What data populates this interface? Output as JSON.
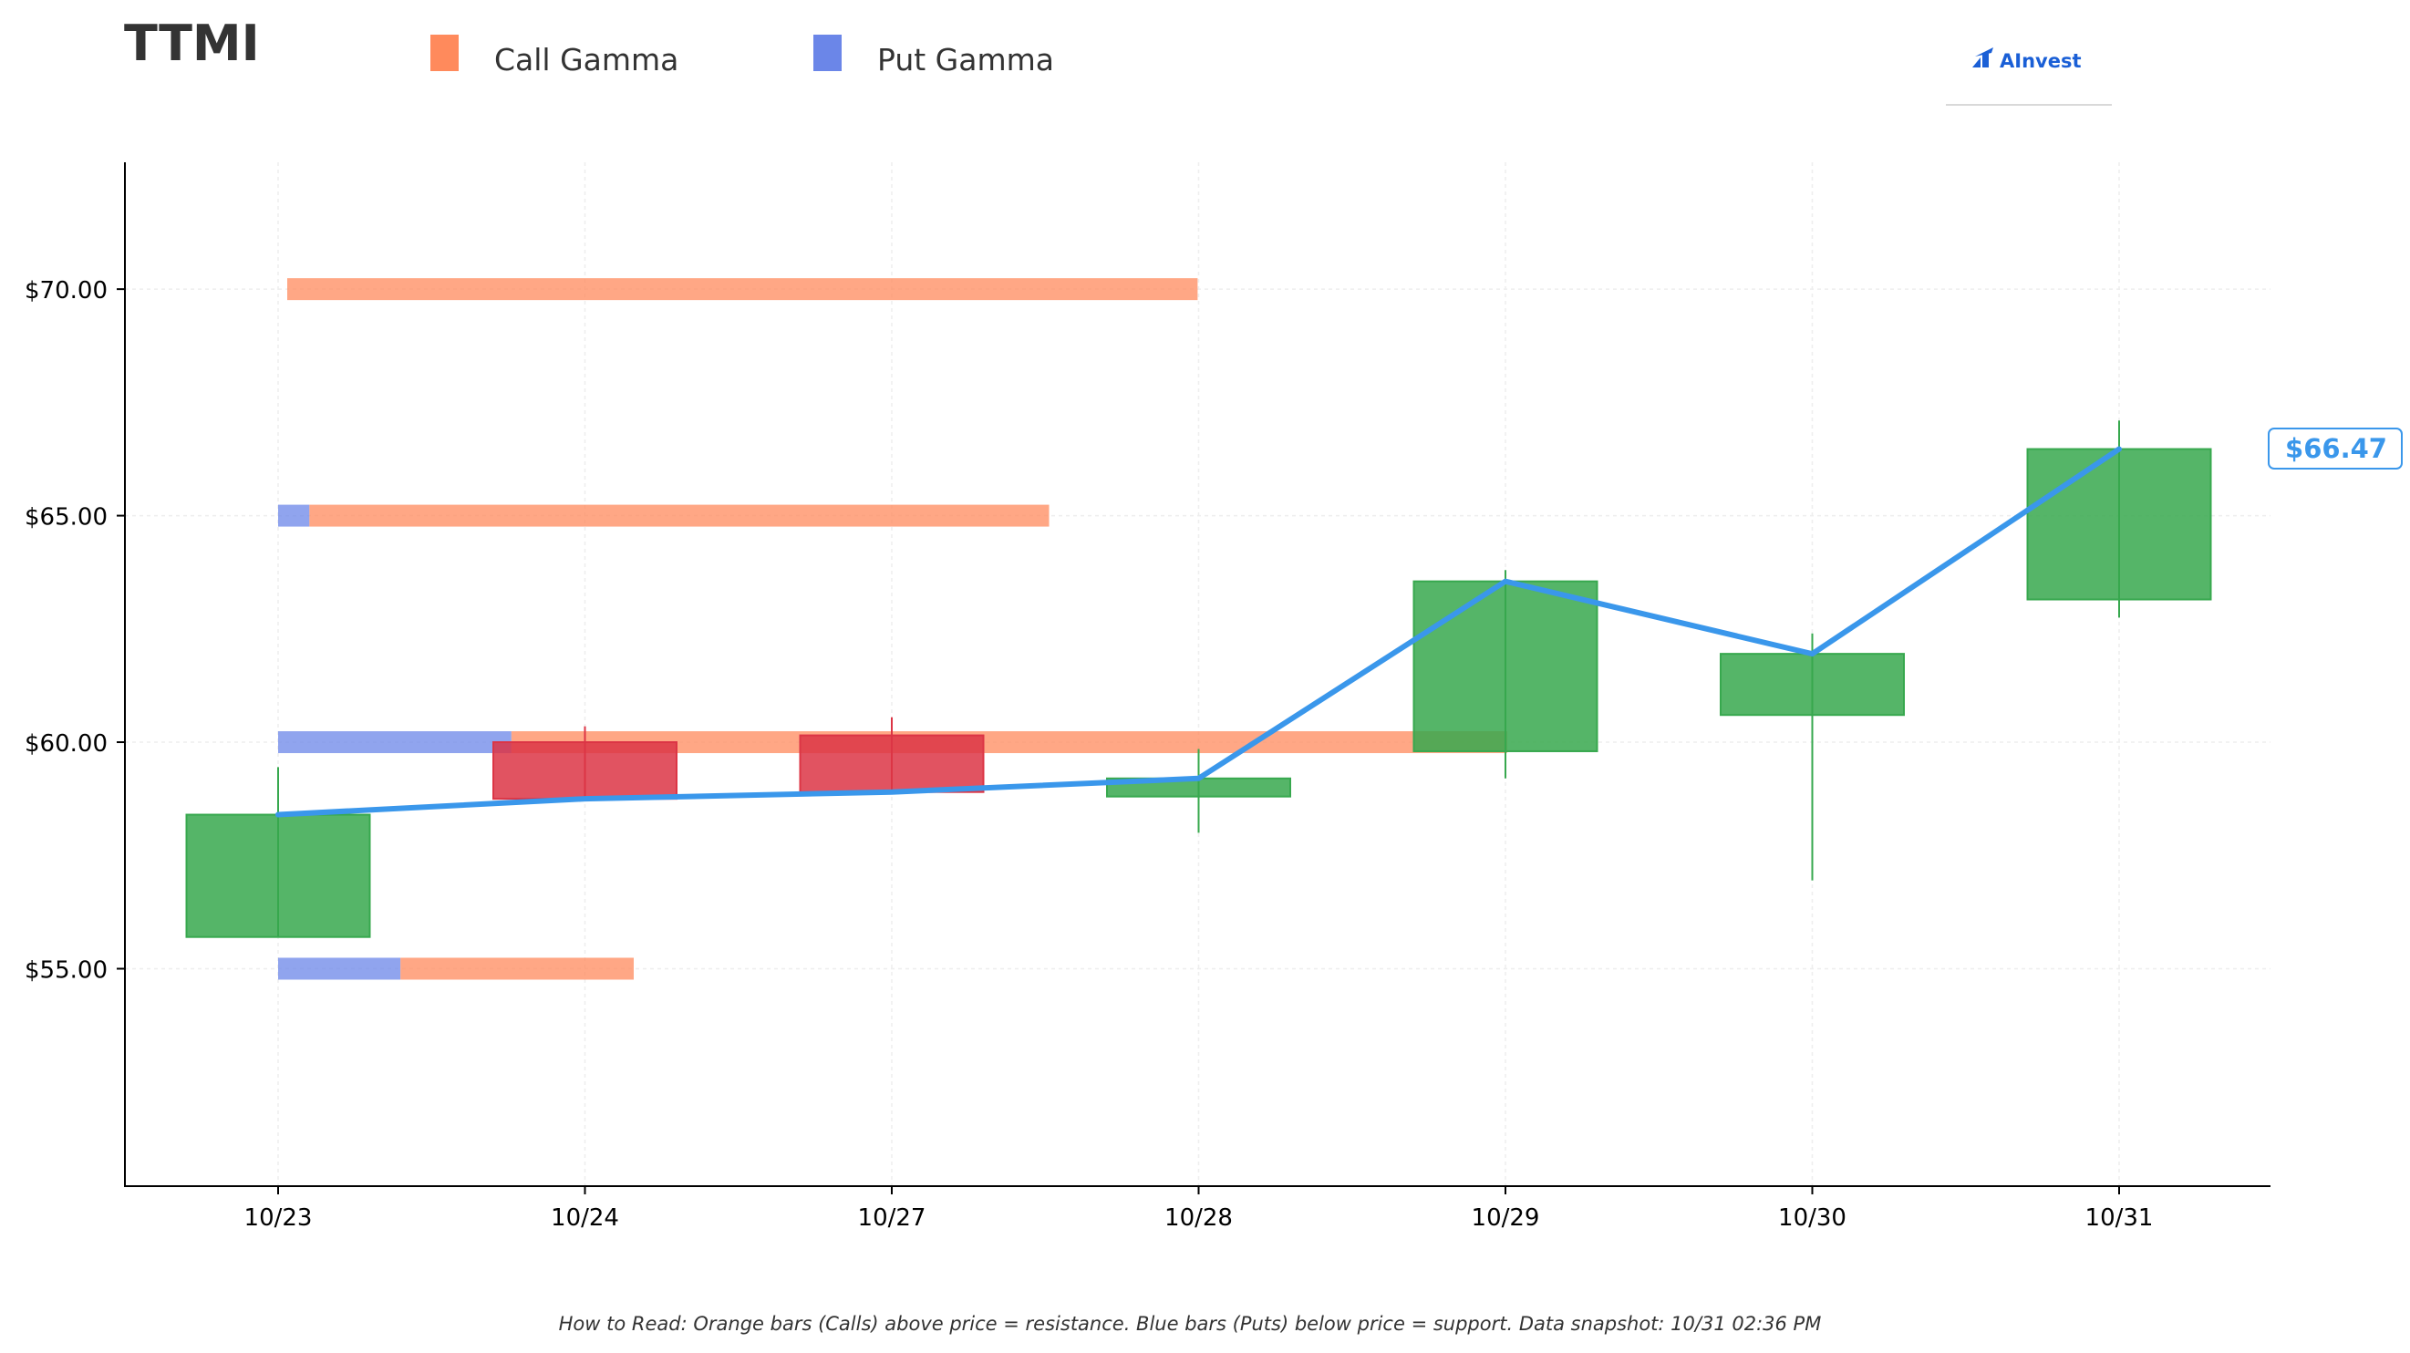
{
  "ticker": "TTMI",
  "brand": "AInvest",
  "footer_note": "How to Read: Orange bars (Calls) above price = resistance. Blue bars (Puts) below price = support. Data snapshot: 10/31 02:36 PM",
  "colors": {
    "call": "#ff8a5c",
    "put": "#6b86e8",
    "up": "#37a84e",
    "down": "#dc3545",
    "price_line": "#3a97eb",
    "brand": "#1a5fd6",
    "text": "#333333"
  },
  "chart_data": {
    "type": "candlestick",
    "title": "TTMI",
    "legend": {
      "position": "top",
      "entries": [
        {
          "name": "Call Gamma",
          "color": "#ff8a5c"
        },
        {
          "name": "Put Gamma",
          "color": "#6b86e8"
        }
      ]
    },
    "categories": [
      "10/23",
      "10/24",
      "10/27",
      "10/28",
      "10/29",
      "10/30",
      "10/31"
    ],
    "ohlc": [
      {
        "open": 55.7,
        "high": 59.45,
        "low": 55.7,
        "close": 58.4
      },
      {
        "open": 60.0,
        "high": 60.35,
        "low": 58.75,
        "close": 58.75
      },
      {
        "open": 60.15,
        "high": 60.55,
        "low": 58.9,
        "close": 58.9
      },
      {
        "open": 58.8,
        "high": 59.85,
        "low": 58.0,
        "close": 59.2
      },
      {
        "open": 59.8,
        "high": 63.8,
        "low": 59.2,
        "close": 63.55
      },
      {
        "open": 60.6,
        "high": 62.4,
        "low": 56.95,
        "close": 61.95
      },
      {
        "open": 63.15,
        "high": 67.1,
        "low": 62.75,
        "close": 66.47
      }
    ],
    "price_line": {
      "values": [
        58.4,
        58.75,
        58.9,
        59.2,
        63.55,
        61.95,
        66.47
      ]
    },
    "last_price_label": "$66.47",
    "gamma_levels": [
      {
        "strike": 70,
        "call": 3.2,
        "put": 0.0
      },
      {
        "strike": 65,
        "call": 2.6,
        "put": 0.11
      },
      {
        "strike": 60,
        "call": 3.5,
        "put": 0.82
      },
      {
        "strike": 55,
        "call": 0.82,
        "put": 0.43
      }
    ],
    "y_ticks": [
      55,
      60,
      65,
      70
    ],
    "y_tick_labels": [
      "$55.00",
      "$60.00",
      "$65.00",
      "$70.00"
    ],
    "ylim": [
      50.2,
      72.8
    ],
    "xlabel": "",
    "ylabel": "",
    "grid": true
  }
}
